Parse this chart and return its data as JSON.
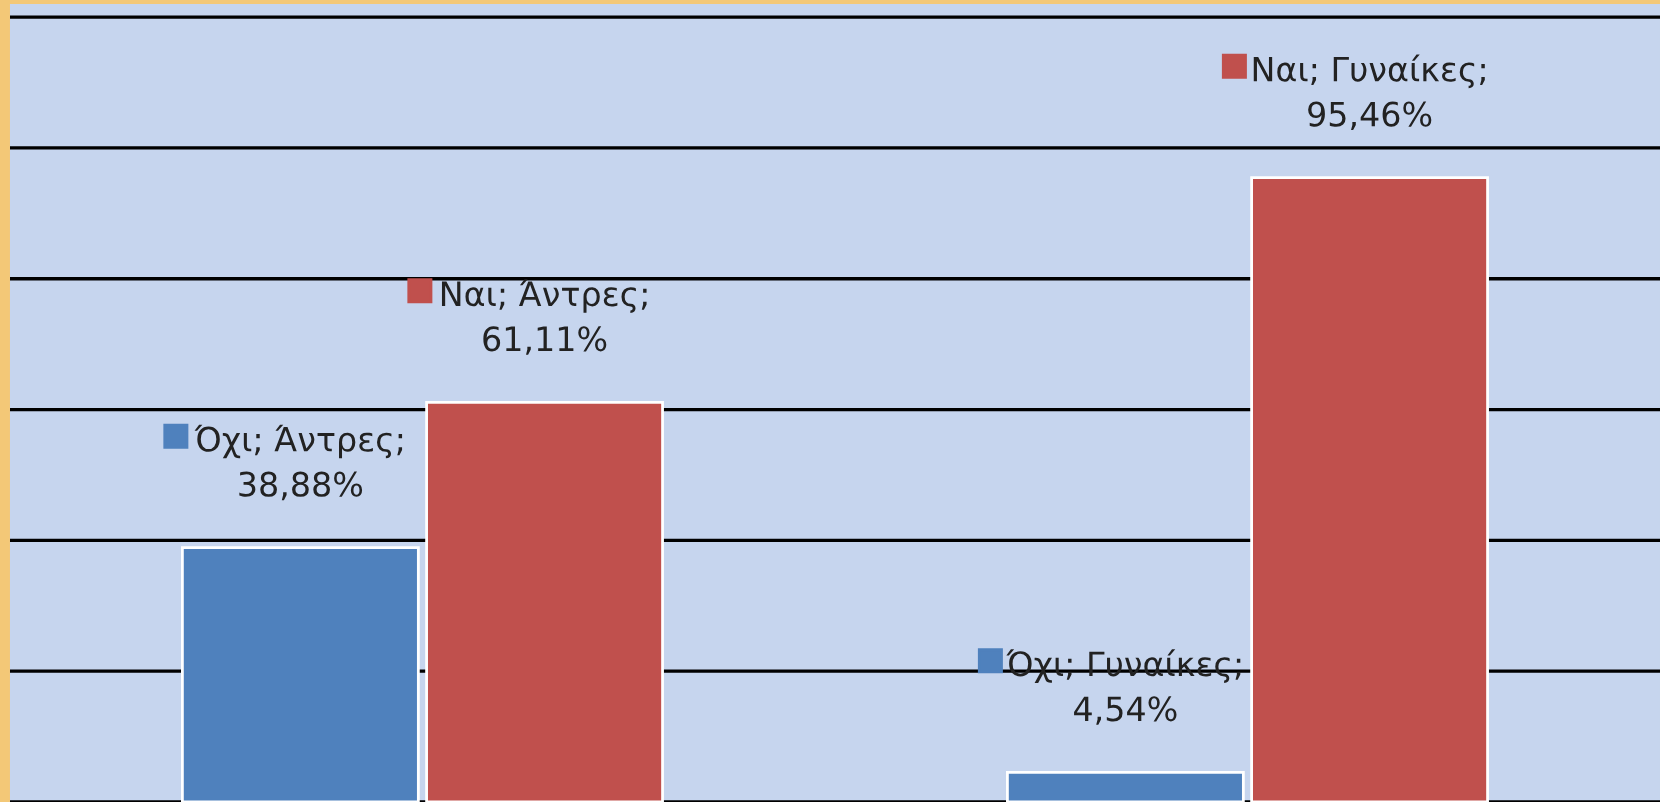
{
  "chart_data": {
    "type": "bar",
    "categories": [
      null,
      null
    ],
    "series": [
      {
        "color": "#4f81bd",
        "values": [
          38.88,
          4.54
        ],
        "value_labels": [
          "Όχι; Άντρες;\n38,88%",
          "Όχι; Γυναίκες;\n4,54%"
        ]
      },
      {
        "color": "#c0504d",
        "values": [
          61.11,
          95.46
        ],
        "value_labels": [
          "Ναι; Άντρες;\n61,11%",
          "Ναι; Γυναίκες;\n95,46%"
        ]
      }
    ],
    "ylim": [
      0,
      122
    ],
    "yticks": [
      {
        "value": 0,
        "label": null
      },
      {
        "value": 20,
        "label": null
      },
      {
        "value": 40,
        "label": null
      },
      {
        "value": 60,
        "label": null
      },
      {
        "value": 80,
        "label": null
      },
      {
        "value": 100,
        "label": null
      },
      {
        "value": 120,
        "label": null
      }
    ],
    "grid": "y"
  }
}
